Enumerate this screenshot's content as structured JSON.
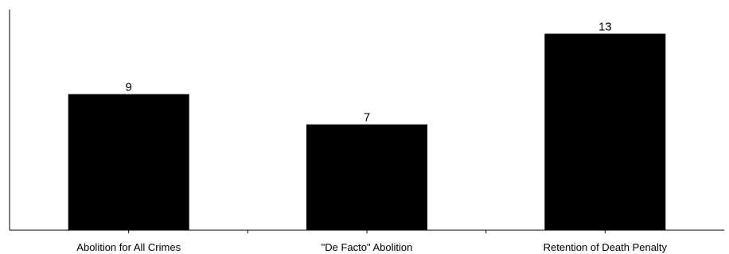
{
  "chart_data": {
    "type": "bar",
    "title": "",
    "xlabel": "",
    "ylabel": "",
    "categories": [
      "Abolition for All Crimes",
      "\"De Facto\" Abolition",
      "Retention of Death Penalty"
    ],
    "values": [
      9,
      7,
      13
    ],
    "data_labels": [
      "9",
      "7",
      "13"
    ],
    "ylim": [
      0,
      14.6
    ],
    "grid": false,
    "legend": "none",
    "colors": {
      "bar": "#000000",
      "axis": "#000000",
      "background": "#ffffff"
    }
  }
}
